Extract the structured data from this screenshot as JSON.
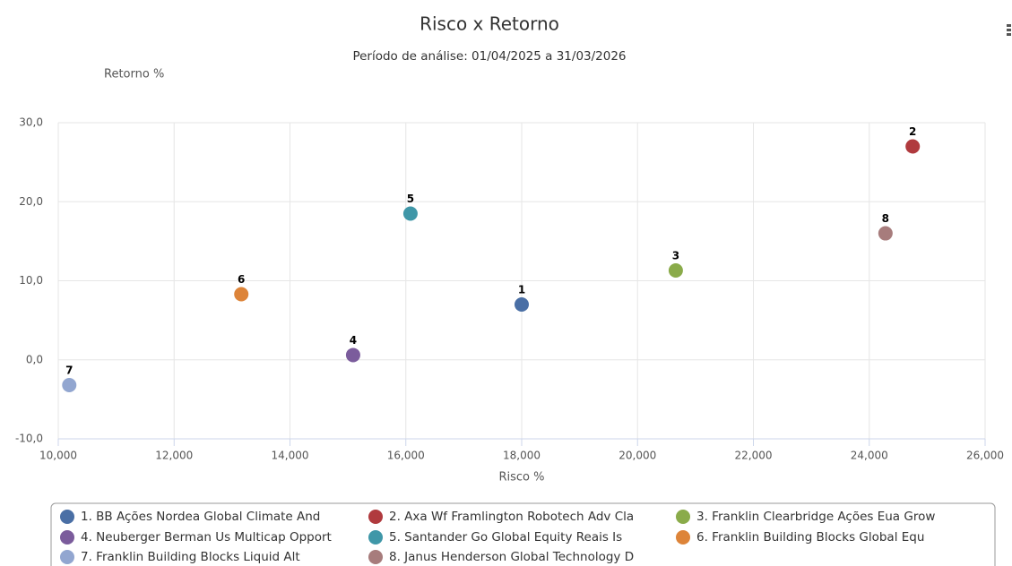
{
  "chart_data": {
    "type": "scatter",
    "title": "Risco x Retorno",
    "subtitle": "Período de análise: 01/04/2025 a 31/03/2026",
    "x_label": "Risco %",
    "y_label": "Retorno %",
    "xlim": [
      10,
      26
    ],
    "ylim": [
      -10,
      30
    ],
    "xticks": [
      {
        "value": 10,
        "label": "10,000"
      },
      {
        "value": 12,
        "label": "12,000"
      },
      {
        "value": 14,
        "label": "14,000"
      },
      {
        "value": 16,
        "label": "16,000"
      },
      {
        "value": 18,
        "label": "18,000"
      },
      {
        "value": 20,
        "label": "20,000"
      },
      {
        "value": 22,
        "label": "22,000"
      },
      {
        "value": 24,
        "label": "24,000"
      },
      {
        "value": 26,
        "label": "26,000"
      }
    ],
    "yticks": [
      {
        "value": -10,
        "label": "-10,0"
      },
      {
        "value": 0,
        "label": "0,0"
      },
      {
        "value": 10,
        "label": "10,0"
      },
      {
        "value": 20,
        "label": "20,0"
      },
      {
        "value": 30,
        "label": "30,0"
      }
    ],
    "grid": true,
    "legend": "bottom",
    "series": [
      {
        "name": "1. BB Ações Nordea Global Climate And",
        "label": "1",
        "color": "#4a6fa5",
        "x": [
          18.0
        ],
        "values": [
          7.0
        ]
      },
      {
        "name": "2. Axa Wf Framlington Robotech Adv Cla",
        "label": "2",
        "color": "#b03a3e",
        "x": [
          24.75
        ],
        "values": [
          27.0
        ]
      },
      {
        "name": "3. Franklin Clearbridge Ações Eua Grow",
        "label": "3",
        "color": "#8aab4a",
        "x": [
          20.66
        ],
        "values": [
          11.3
        ]
      },
      {
        "name": "4. Neuberger Berman Us Multicap Opport",
        "label": "4",
        "color": "#7b5c9c",
        "x": [
          15.09
        ],
        "values": [
          0.6
        ]
      },
      {
        "name": "5. Santander Go Global Equity Reais Is",
        "label": "5",
        "color": "#3f97a8",
        "x": [
          16.08
        ],
        "values": [
          18.5
        ]
      },
      {
        "name": "6. Franklin Building Blocks Global Equ",
        "label": "6",
        "color": "#dd8439",
        "x": [
          13.16
        ],
        "values": [
          8.3
        ]
      },
      {
        "name": "7. Franklin Building Blocks Liquid Alt",
        "label": "7",
        "color": "#92a6d0",
        "x": [
          10.19
        ],
        "values": [
          -3.2
        ]
      },
      {
        "name": "8. Janus Henderson Global Technology D",
        "label": "8",
        "color": "#a77c7c",
        "x": [
          24.28
        ],
        "values": [
          16.0
        ]
      }
    ]
  }
}
